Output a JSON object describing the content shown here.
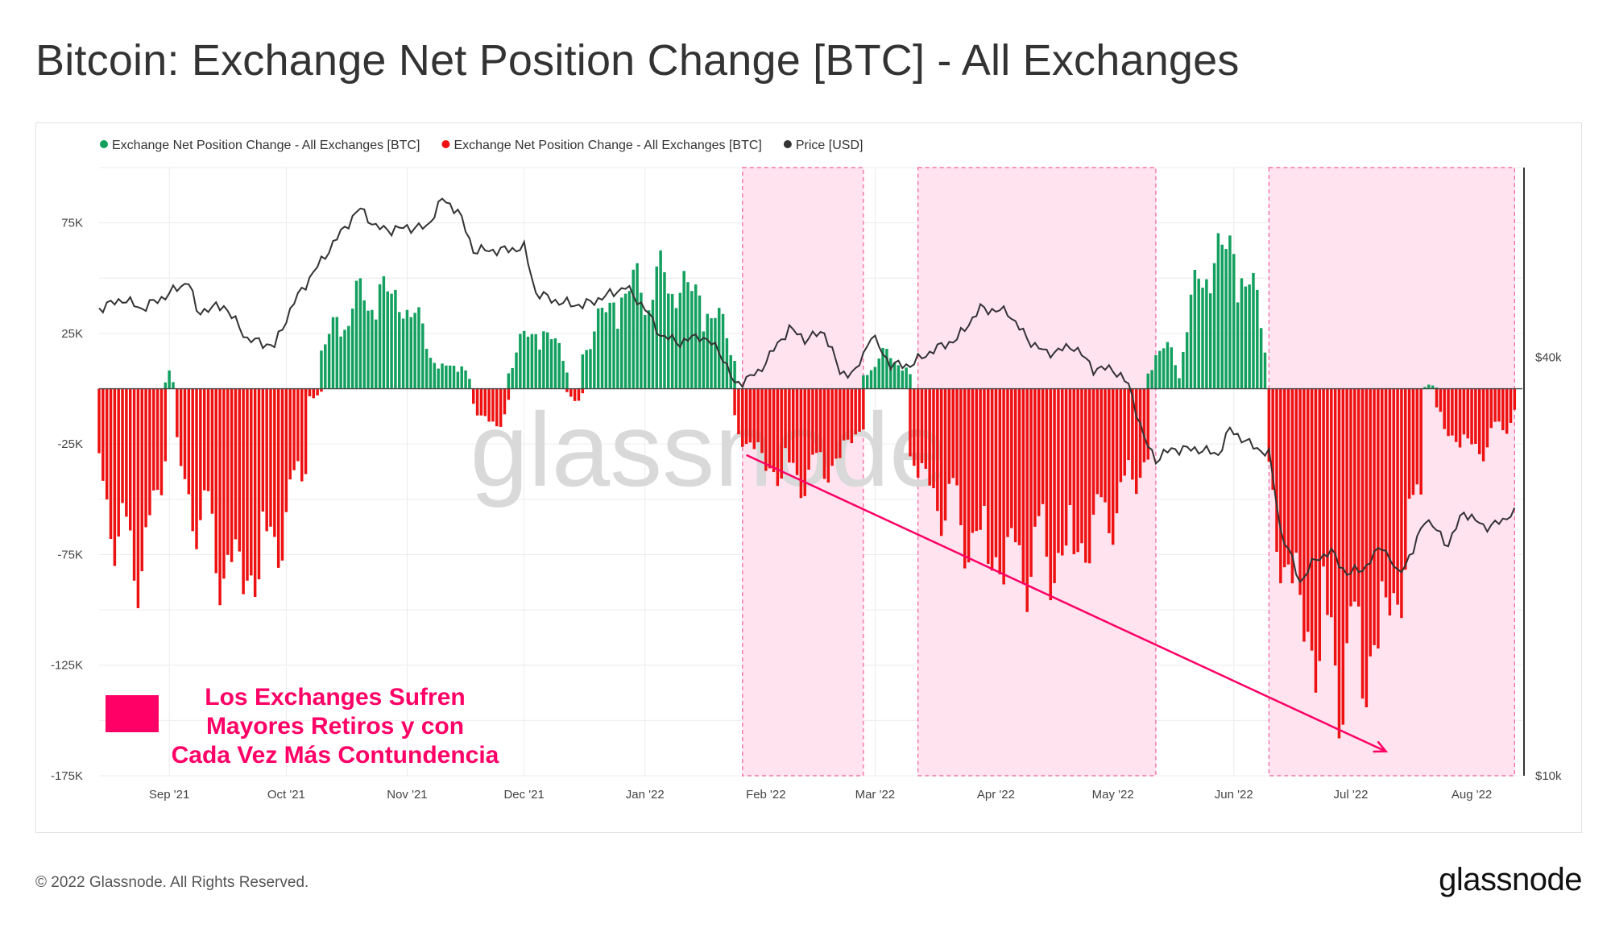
{
  "title": "Bitcoin: Exchange Net Position Change [BTC] - All Exchanges",
  "footer": {
    "copyright": "© 2022 Glassnode. All Rights Reserved.",
    "logo": "glassnode"
  },
  "watermark": "glassnode",
  "colors": {
    "positive": "#13a05f",
    "negative": "#ee1111",
    "price": "#333333",
    "shade": "#ffe3ee",
    "shade_border": "#f0609a",
    "arrow": "#ff0066"
  },
  "annotation": {
    "lines": [
      "Los Exchanges Sufren",
      "Mayores Retiros y con",
      "Cada Vez Más Contundencia"
    ],
    "color": "#ff0066"
  },
  "chart_data": {
    "type": "bar",
    "title": "Bitcoin: Exchange Net Position Change [BTC] - All Exchanges",
    "legend": [
      {
        "name": "Exchange Net Position Change - All Exchanges [BTC]",
        "color": "#13a05f"
      },
      {
        "name": "Exchange Net Position Change - All Exchanges [BTC]",
        "color": "#ee1111"
      },
      {
        "name": "Price [USD]",
        "color": "#333333"
      }
    ],
    "legend_position": "top-left",
    "x_range": [
      "2021-08-14",
      "2022-08-14"
    ],
    "x_ticks": [
      "Sep '21",
      "Oct '21",
      "Nov '21",
      "Dec '21",
      "Jan '22",
      "Feb '22",
      "Mar '22",
      "Apr '22",
      "May '22",
      "Jun '22",
      "Jul '22",
      "Aug '22"
    ],
    "y_left": {
      "ticks": [
        "75K",
        "25K",
        "-25K",
        "-75K",
        "-125K",
        "-175K"
      ],
      "range": [
        -175000,
        100000
      ]
    },
    "y_right": {
      "ticks": [
        "$40k",
        "$10k"
      ],
      "scale": "log",
      "range": [
        10000,
        75000
      ]
    },
    "grid": true,
    "shaded_periods": [
      [
        "2022-01-26",
        "2022-02-26"
      ],
      [
        "2022-03-12",
        "2022-05-12"
      ],
      [
        "2022-06-10",
        "2022-08-12"
      ]
    ],
    "trend_arrow": {
      "from": [
        "2022-01-27",
        -30000
      ],
      "to": [
        "2022-07-10",
        -164000
      ]
    },
    "net_position_segments": [
      {
        "start": "2021-08-14",
        "end": "2021-08-31",
        "peak": -95000
      },
      {
        "start": "2021-08-31",
        "end": "2021-09-02",
        "peak": 9000
      },
      {
        "start": "2021-09-03",
        "end": "2021-10-06",
        "peak": -100000
      },
      {
        "start": "2021-10-06",
        "end": "2021-10-10",
        "peak": -5000
      },
      {
        "start": "2021-10-10",
        "end": "2021-11-08",
        "peak": 52000
      },
      {
        "start": "2021-11-08",
        "end": "2021-11-17",
        "peak": 14000
      },
      {
        "start": "2021-11-18",
        "end": "2021-11-27",
        "peak": -20000
      },
      {
        "start": "2021-11-27",
        "end": "2021-12-12",
        "peak": 31000
      },
      {
        "start": "2021-12-12",
        "end": "2021-12-16",
        "peak": -6000
      },
      {
        "start": "2021-12-16",
        "end": "2022-01-24",
        "peak": 59000
      },
      {
        "start": "2022-01-24",
        "end": "2022-02-26",
        "peak": -48000
      },
      {
        "start": "2022-02-26",
        "end": "2022-03-10",
        "peak": 18000
      },
      {
        "start": "2022-03-10",
        "end": "2022-05-10",
        "peak": -95000
      },
      {
        "start": "2022-05-10",
        "end": "2022-05-18",
        "peak": 22000
      },
      {
        "start": "2022-05-19",
        "end": "2022-06-09",
        "peak": 74000
      },
      {
        "start": "2022-06-10",
        "end": "2022-07-19",
        "peak": -152000
      },
      {
        "start": "2022-07-20",
        "end": "2022-07-23",
        "peak": 2000
      },
      {
        "start": "2022-07-23",
        "end": "2022-08-12",
        "peak": -32000
      }
    ],
    "price_usd": [
      {
        "x": "2021-08-14",
        "y": 47000
      },
      {
        "x": "2021-08-20",
        "y": 48500
      },
      {
        "x": "2021-08-25",
        "y": 47000
      },
      {
        "x": "2021-08-31",
        "y": 49000
      },
      {
        "x": "2021-09-06",
        "y": 51500
      },
      {
        "x": "2021-09-08",
        "y": 46500
      },
      {
        "x": "2021-09-15",
        "y": 47500
      },
      {
        "x": "2021-09-21",
        "y": 42500
      },
      {
        "x": "2021-09-28",
        "y": 41500
      },
      {
        "x": "2021-10-03",
        "y": 48000
      },
      {
        "x": "2021-10-10",
        "y": 55000
      },
      {
        "x": "2021-10-16",
        "y": 61500
      },
      {
        "x": "2021-10-20",
        "y": 65500
      },
      {
        "x": "2021-10-24",
        "y": 61500
      },
      {
        "x": "2021-10-28",
        "y": 61000
      },
      {
        "x": "2021-11-01",
        "y": 61500
      },
      {
        "x": "2021-11-06",
        "y": 61500
      },
      {
        "x": "2021-11-10",
        "y": 67500
      },
      {
        "x": "2021-11-14",
        "y": 65000
      },
      {
        "x": "2021-11-18",
        "y": 57000
      },
      {
        "x": "2021-11-25",
        "y": 57000
      },
      {
        "x": "2021-12-01",
        "y": 57500
      },
      {
        "x": "2021-12-04",
        "y": 49500
      },
      {
        "x": "2021-12-10",
        "y": 48000
      },
      {
        "x": "2021-12-16",
        "y": 47500
      },
      {
        "x": "2021-12-22",
        "y": 49000
      },
      {
        "x": "2021-12-27",
        "y": 50500
      },
      {
        "x": "2022-01-01",
        "y": 47000
      },
      {
        "x": "2022-01-05",
        "y": 43000
      },
      {
        "x": "2022-01-10",
        "y": 42000
      },
      {
        "x": "2022-01-15",
        "y": 43000
      },
      {
        "x": "2022-01-20",
        "y": 41000
      },
      {
        "x": "2022-01-24",
        "y": 36500
      },
      {
        "x": "2022-01-30",
        "y": 38000
      },
      {
        "x": "2022-02-07",
        "y": 44000
      },
      {
        "x": "2022-02-11",
        "y": 42500
      },
      {
        "x": "2022-02-16",
        "y": 43500
      },
      {
        "x": "2022-02-20",
        "y": 38000
      },
      {
        "x": "2022-02-24",
        "y": 38000
      },
      {
        "x": "2022-02-28",
        "y": 43000
      },
      {
        "x": "2022-03-05",
        "y": 39000
      },
      {
        "x": "2022-03-10",
        "y": 39000
      },
      {
        "x": "2022-03-16",
        "y": 41000
      },
      {
        "x": "2022-03-22",
        "y": 42500
      },
      {
        "x": "2022-03-28",
        "y": 47000
      },
      {
        "x": "2022-04-04",
        "y": 46500
      },
      {
        "x": "2022-04-09",
        "y": 42500
      },
      {
        "x": "2022-04-14",
        "y": 40500
      },
      {
        "x": "2022-04-21",
        "y": 41500
      },
      {
        "x": "2022-04-26",
        "y": 38500
      },
      {
        "x": "2022-05-01",
        "y": 38500
      },
      {
        "x": "2022-05-05",
        "y": 36500
      },
      {
        "x": "2022-05-09",
        "y": 30500
      },
      {
        "x": "2022-05-12",
        "y": 28500
      },
      {
        "x": "2022-05-16",
        "y": 29500
      },
      {
        "x": "2022-05-23",
        "y": 29500
      },
      {
        "x": "2022-05-28",
        "y": 29000
      },
      {
        "x": "2022-05-31",
        "y": 31500
      },
      {
        "x": "2022-06-05",
        "y": 30000
      },
      {
        "x": "2022-06-10",
        "y": 29000
      },
      {
        "x": "2022-06-13",
        "y": 22500
      },
      {
        "x": "2022-06-18",
        "y": 19000
      },
      {
        "x": "2022-06-22",
        "y": 20500
      },
      {
        "x": "2022-06-26",
        "y": 21000
      },
      {
        "x": "2022-06-30",
        "y": 19500
      },
      {
        "x": "2022-07-05",
        "y": 20000
      },
      {
        "x": "2022-07-09",
        "y": 21500
      },
      {
        "x": "2022-07-13",
        "y": 19500
      },
      {
        "x": "2022-07-17",
        "y": 21000
      },
      {
        "x": "2022-07-20",
        "y": 23500
      },
      {
        "x": "2022-07-26",
        "y": 21500
      },
      {
        "x": "2022-07-30",
        "y": 24000
      },
      {
        "x": "2022-08-04",
        "y": 22800
      },
      {
        "x": "2022-08-09",
        "y": 23200
      },
      {
        "x": "2022-08-12",
        "y": 24300
      }
    ]
  }
}
